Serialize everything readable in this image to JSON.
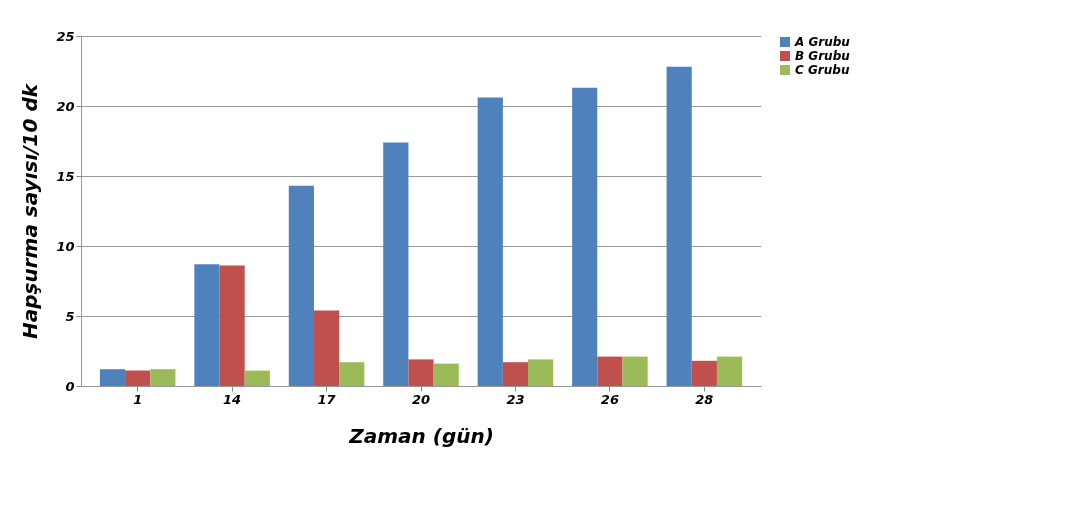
{
  "chart_data": {
    "type": "bar",
    "xlabel": "Zaman (gün)",
    "ylabel": "Hapşurma sayısı/10 dk",
    "categories": [
      "1",
      "14",
      "17",
      "20",
      "23",
      "26",
      "28"
    ],
    "series": [
      {
        "name": "A Grubu",
        "color": "#4f81bd",
        "values": [
          1.2,
          8.7,
          14.3,
          17.4,
          20.6,
          21.3,
          22.8
        ]
      },
      {
        "name": "B Grubu",
        "color": "#c0504d",
        "values": [
          1.1,
          8.6,
          5.4,
          1.9,
          1.7,
          2.1,
          1.8
        ]
      },
      {
        "name": "C Grubu",
        "color": "#9bbb59",
        "values": [
          1.2,
          1.1,
          1.7,
          1.6,
          1.9,
          2.1,
          2.1
        ]
      }
    ],
    "ylim": [
      0,
      25
    ],
    "yticks": [
      0,
      5,
      10,
      15,
      20,
      25
    ],
    "grid": "y",
    "legend": "right"
  }
}
